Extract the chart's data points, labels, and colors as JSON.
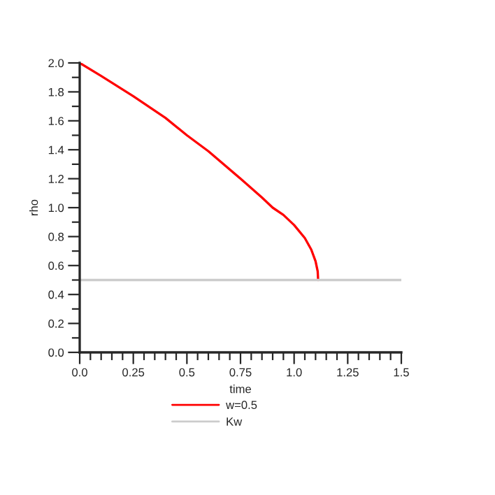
{
  "chart_data": {
    "type": "line",
    "xlabel": "time",
    "ylabel": "rho",
    "series": [
      {
        "name": "w=0.5",
        "color": "#ff0000",
        "x": [
          0.0,
          0.1,
          0.25,
          0.4,
          0.5,
          0.6,
          0.75,
          0.85,
          0.9,
          0.95,
          1.0,
          1.05,
          1.08,
          1.1,
          1.11,
          1.112
        ],
        "values": [
          2.0,
          1.91,
          1.77,
          1.62,
          1.5,
          1.39,
          1.2,
          1.07,
          1.0,
          0.95,
          0.88,
          0.79,
          0.71,
          0.63,
          0.56,
          0.5
        ]
      },
      {
        "name": "Kw",
        "color": "#cccccc",
        "x": [
          0.0,
          1.5
        ],
        "values": [
          0.5,
          0.5
        ]
      }
    ],
    "xlim": [
      0.0,
      1.5
    ],
    "xticks": [
      {
        "value": 0,
        "label": "0.0"
      },
      0.25,
      0.5,
      0.75,
      {
        "value": 1,
        "label": "1.0"
      },
      1.25,
      1.5
    ],
    "ylim": [
      0.0,
      2.0
    ],
    "yticks": [
      {
        "value": 0,
        "label": "0.0"
      },
      0.2,
      0.4,
      0.6,
      0.8,
      {
        "value": 1,
        "label": "1.0"
      },
      1.2,
      1.4,
      1.6,
      1.8,
      {
        "value": 2,
        "label": "2.0"
      }
    ],
    "legend": "bottom",
    "grid": false,
    "line_style": "solid"
  }
}
